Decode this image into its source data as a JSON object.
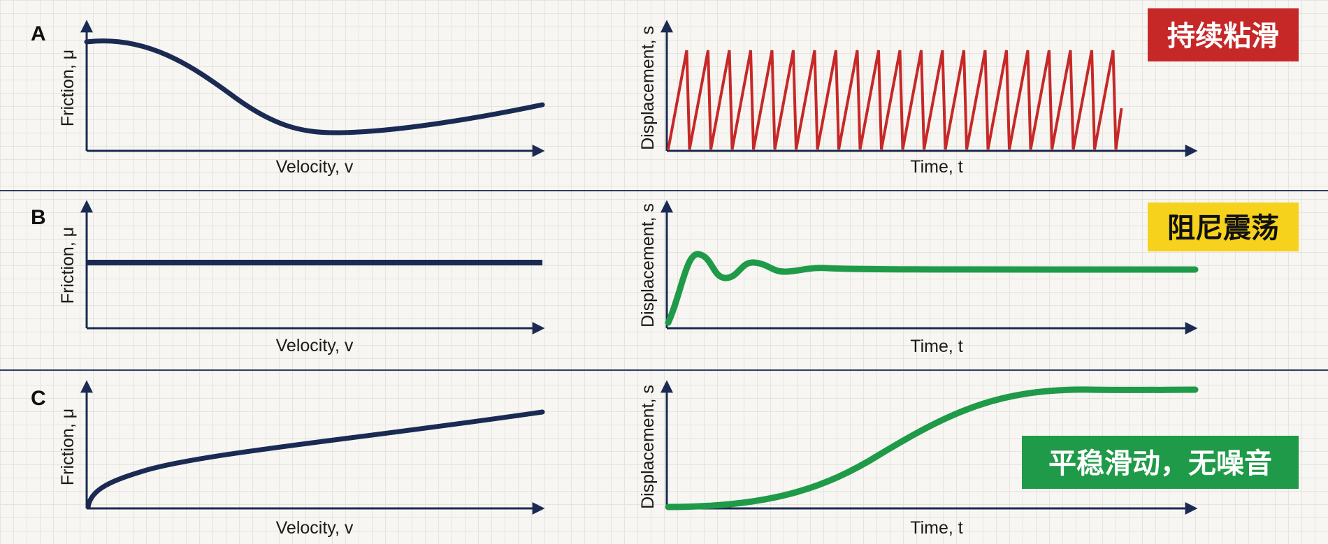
{
  "panels": [
    {
      "letter": "A",
      "friction": {
        "xlabel": "Velocity, v",
        "ylabel": "Friction, μ",
        "curve": "stribeck-dip"
      },
      "displacement": {
        "xlabel": "Time, t",
        "ylabel": "Displacement, s",
        "curve": "sawtooth",
        "color": "#c62828"
      },
      "badge": {
        "text": "持续粘滑",
        "bg": "#c62828",
        "fg": "#ffffff"
      }
    },
    {
      "letter": "B",
      "friction": {
        "xlabel": "Velocity, v",
        "ylabel": "Friction, μ",
        "curve": "constant"
      },
      "displacement": {
        "xlabel": "Time, t",
        "ylabel": "Displacement, s",
        "curve": "damped-oscillation",
        "color": "#1f9a48"
      },
      "badge": {
        "text": "阻尼震荡",
        "bg": "#f7d21c",
        "fg": "#111111"
      }
    },
    {
      "letter": "C",
      "friction": {
        "xlabel": "Velocity, v",
        "ylabel": "Friction, μ",
        "curve": "increasing"
      },
      "displacement": {
        "xlabel": "Time, t",
        "ylabel": "Displacement, s",
        "curve": "sigmoid",
        "color": "#1f9a48"
      },
      "badge": {
        "text": "平稳滑动，无噪音",
        "bg": "#1f9a48",
        "fg": "#ffffff"
      }
    }
  ],
  "colors": {
    "friction_curve": "#1b2a52",
    "axis": "#1b2a52",
    "divider": "#2c3e64"
  }
}
